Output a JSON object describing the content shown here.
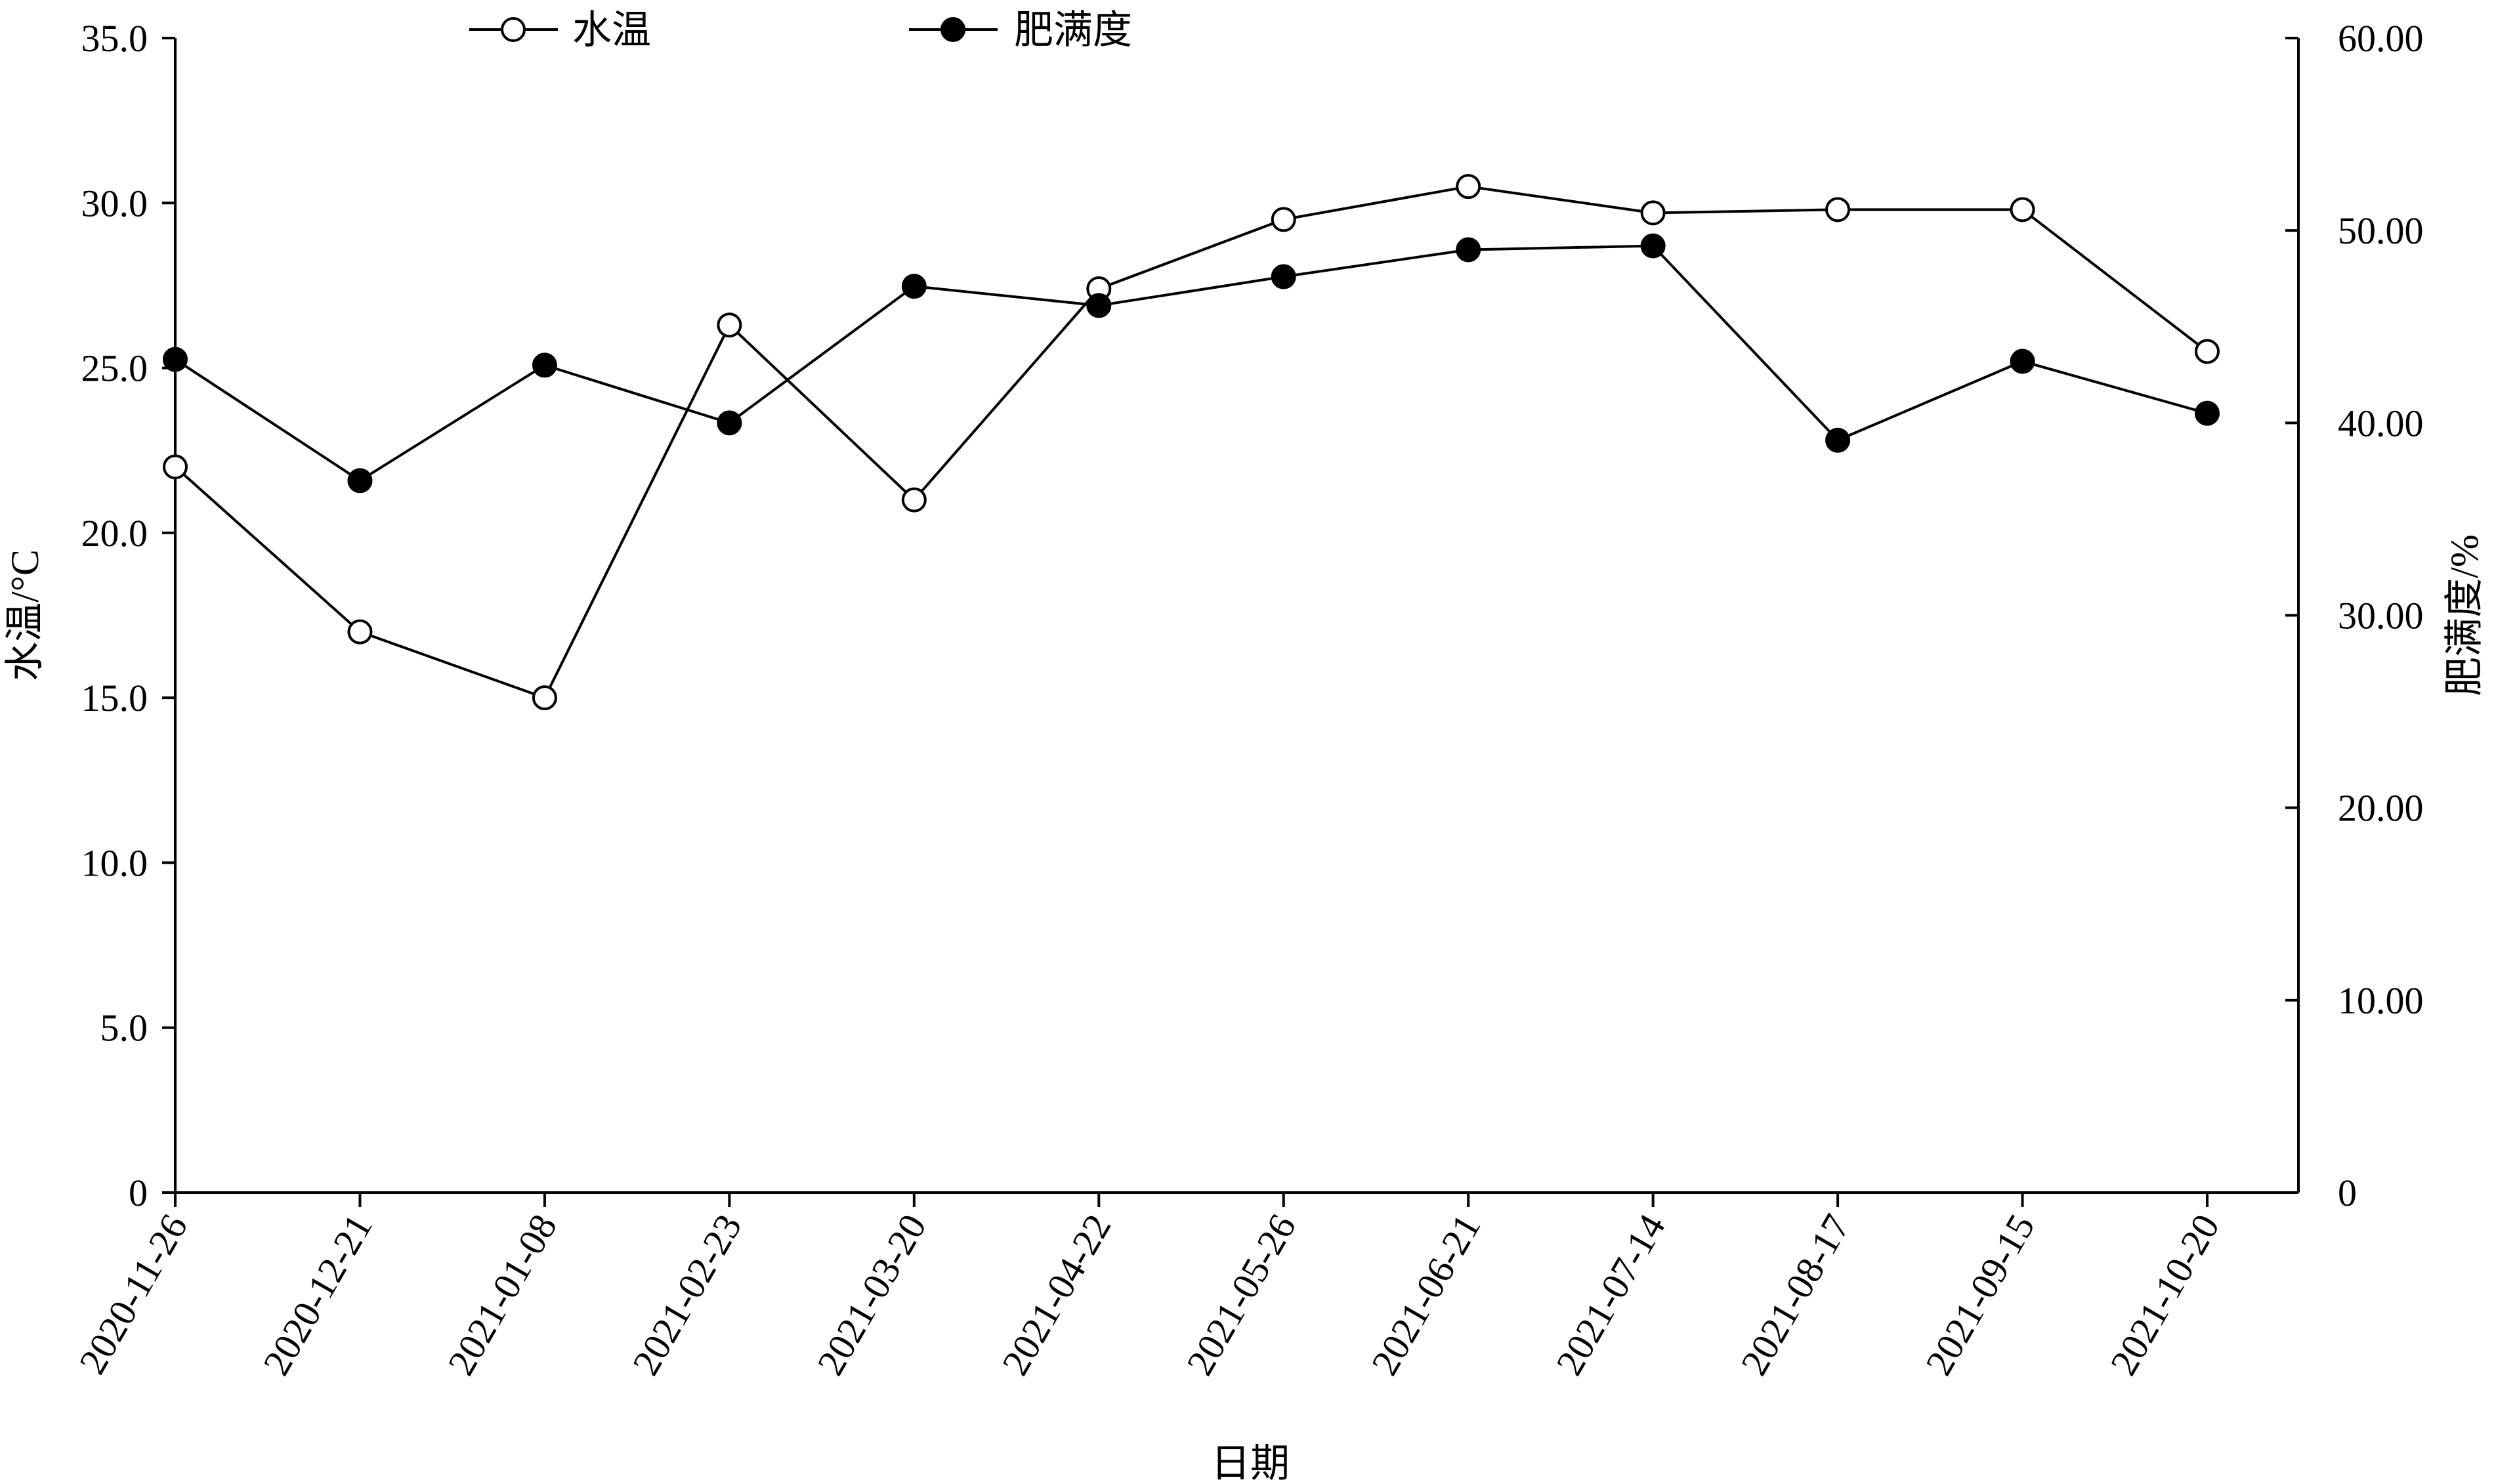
{
  "chart_data": {
    "type": "line",
    "x_categories": [
      "2020-11-26",
      "2020-12-21",
      "2021-01-08",
      "2021-02-23",
      "2021-03-20",
      "2021-04-22",
      "2021-05-26",
      "2021-06-21",
      "2021-07-14",
      "2021-08-17",
      "2021-09-15",
      "2021-10-20"
    ],
    "xlabel": "日期",
    "y_left": {
      "label": "水温/°C",
      "range": [
        0,
        35
      ],
      "ticks": [
        "0",
        "5.0",
        "10.0",
        "15.0",
        "20.0",
        "25.0",
        "30.0",
        "35.0"
      ],
      "tick_values": [
        0,
        5,
        10,
        15,
        20,
        25,
        30,
        35
      ]
    },
    "y_right": {
      "label": "肥满度/%",
      "range": [
        0,
        60
      ],
      "ticks": [
        "0",
        "10.00",
        "20.00",
        "30.00",
        "40.00",
        "50.00",
        "60.00"
      ],
      "tick_values": [
        0,
        10,
        20,
        30,
        40,
        50,
        60
      ]
    },
    "series": [
      {
        "name": "水温",
        "axis": "left",
        "marker": "open-circle",
        "values": [
          22.0,
          17.0,
          15.0,
          26.3,
          21.0,
          27.4,
          29.5,
          30.5,
          29.7,
          29.8,
          29.8,
          25.5
        ]
      },
      {
        "name": "肥满度",
        "axis": "right",
        "marker": "filled-circle",
        "values": [
          43.3,
          37.0,
          43.0,
          40.0,
          47.1,
          46.1,
          47.6,
          49.0,
          49.2,
          39.1,
          43.2,
          40.5
        ]
      }
    ],
    "legend_position": "top",
    "grid": false,
    "colors": {
      "line": "#000000",
      "open_marker_fill": "#ffffff",
      "filled_marker_fill": "#000000"
    }
  }
}
